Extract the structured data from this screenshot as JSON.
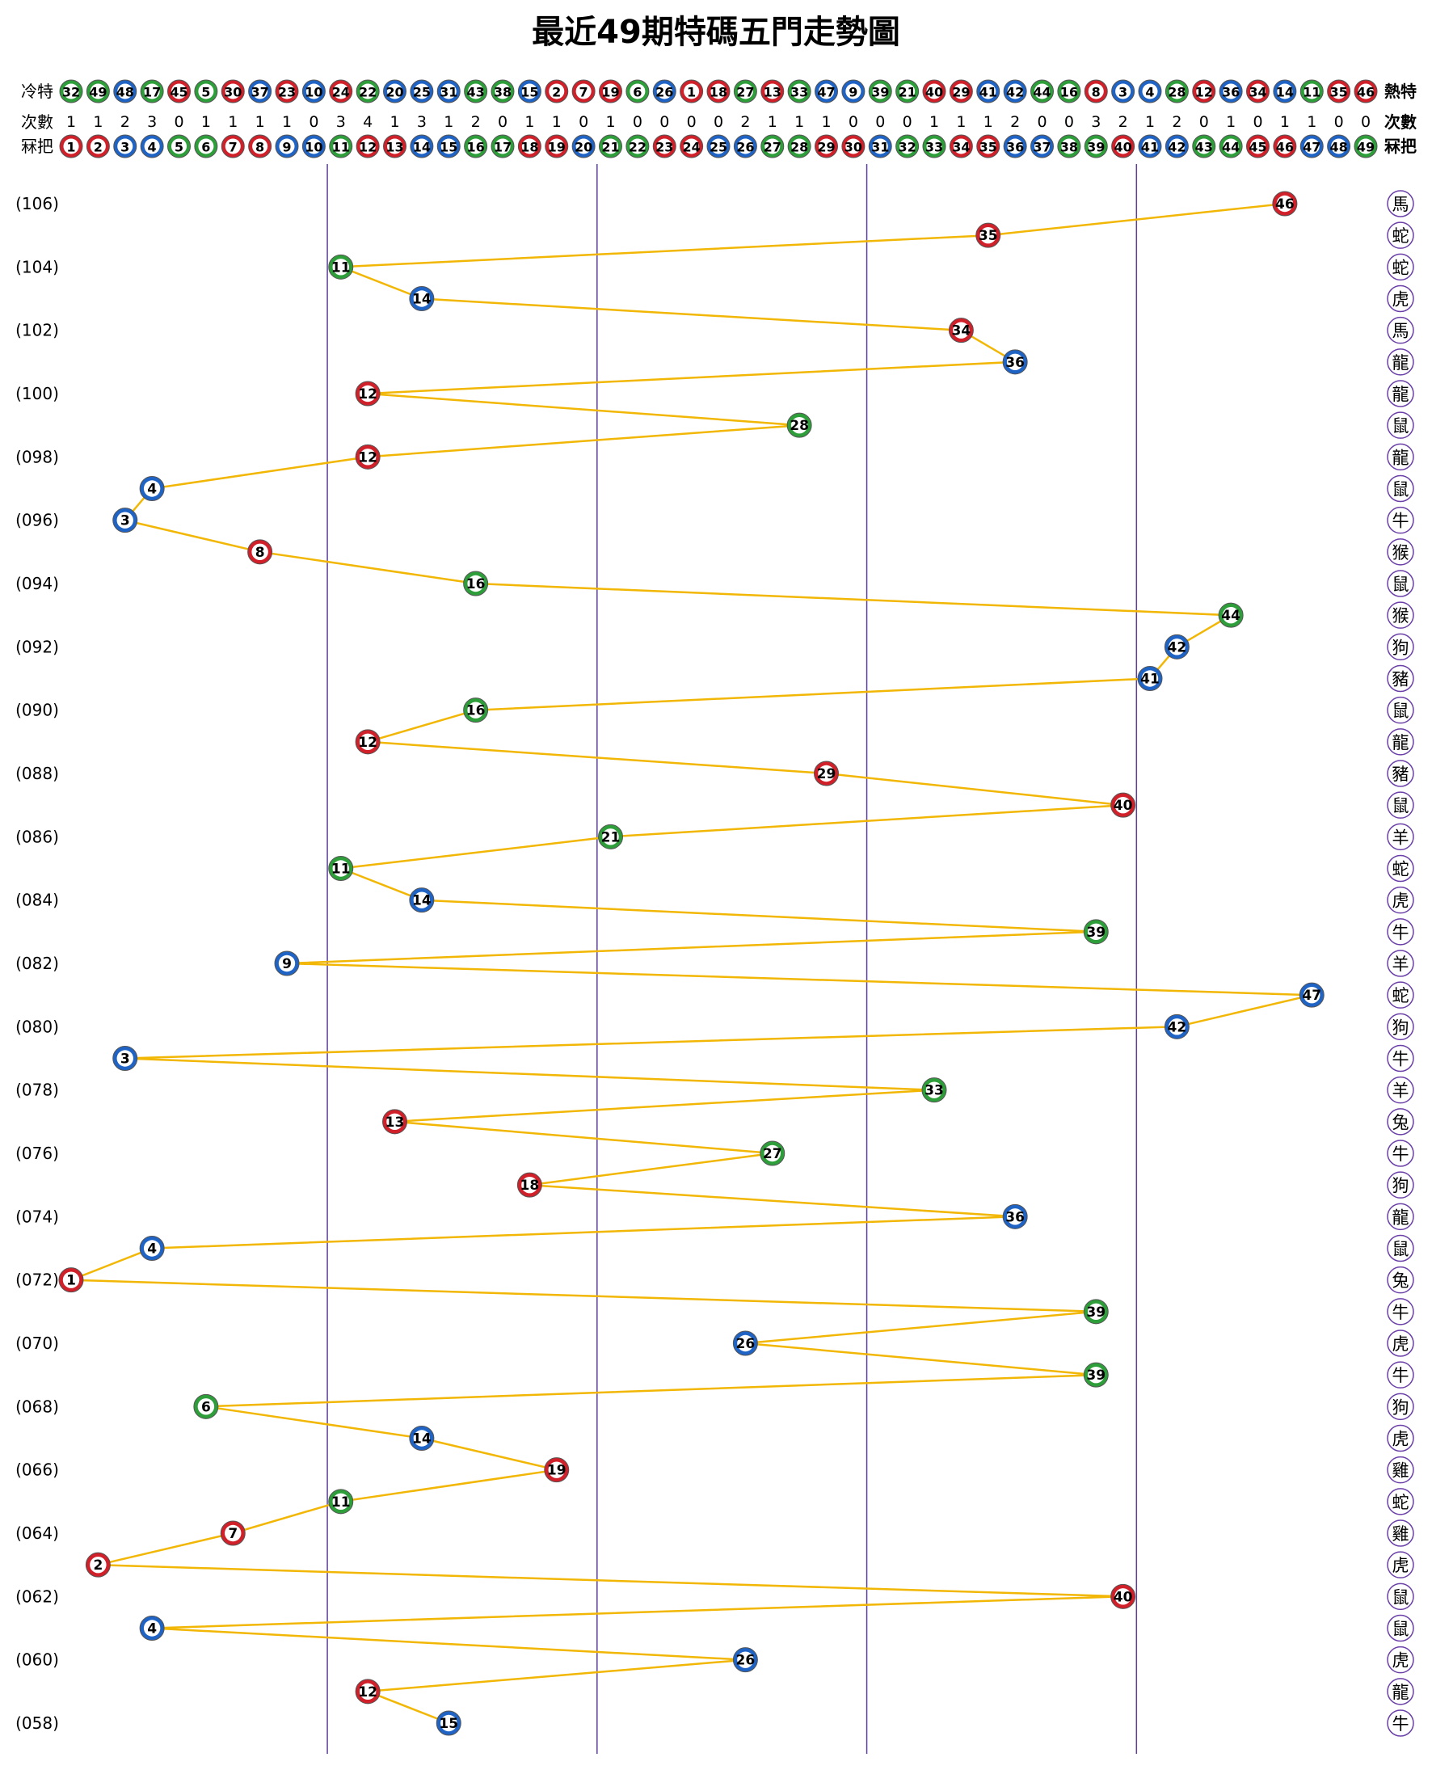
{
  "chart_data": {
    "type": "line",
    "title": "最近49期特碼五門走勢圖",
    "cold_label": "冷特",
    "hot_label": "熱特",
    "cold_order": [
      32,
      49,
      48,
      17,
      45,
      5,
      30,
      37,
      23,
      10,
      24,
      22,
      20,
      25,
      31,
      43,
      38,
      15,
      2,
      7,
      19,
      6,
      26,
      1,
      18,
      27,
      13,
      33,
      47,
      9,
      39,
      21,
      40,
      29,
      41,
      42,
      44,
      16,
      8,
      3,
      4,
      28,
      12,
      36,
      34,
      14,
      11,
      35,
      46
    ],
    "count_label": "次數",
    "counts": [
      1,
      1,
      2,
      3,
      0,
      1,
      1,
      1,
      1,
      0,
      3,
      4,
      1,
      3,
      1,
      2,
      0,
      1,
      1,
      0,
      1,
      0,
      0,
      0,
      0,
      2,
      1,
      1,
      1,
      0,
      0,
      0,
      1,
      1,
      1,
      2,
      0,
      0,
      3,
      2,
      1,
      2,
      0,
      1,
      0,
      1,
      1,
      0,
      0
    ],
    "number_label": "冧把",
    "numbers": [
      1,
      2,
      3,
      4,
      5,
      6,
      7,
      8,
      9,
      10,
      11,
      12,
      13,
      14,
      15,
      16,
      17,
      18,
      19,
      20,
      21,
      22,
      23,
      24,
      25,
      26,
      27,
      28,
      29,
      30,
      31,
      32,
      33,
      34,
      35,
      36,
      37,
      38,
      39,
      40,
      41,
      42,
      43,
      44,
      45,
      46,
      47,
      48,
      49
    ],
    "categories": [
      "(106)",
      null,
      "(104)",
      null,
      "(102)",
      null,
      "(100)",
      null,
      "(098)",
      null,
      "(096)",
      null,
      "(094)",
      null,
      "(092)",
      null,
      "(090)",
      null,
      "(088)",
      null,
      "(086)",
      null,
      "(084)",
      null,
      "(082)",
      null,
      "(080)",
      null,
      "(078)",
      null,
      "(076)",
      null,
      "(074)",
      null,
      "(072)",
      null,
      "(070)",
      null,
      "(068)",
      null,
      "(066)",
      null,
      "(064)",
      null,
      "(062)",
      null,
      "(060)",
      null,
      "(058)"
    ],
    "values": [
      46,
      35,
      11,
      14,
      34,
      36,
      12,
      28,
      12,
      4,
      3,
      8,
      16,
      44,
      42,
      41,
      16,
      12,
      29,
      40,
      21,
      11,
      14,
      39,
      9,
      47,
      42,
      3,
      33,
      13,
      27,
      18,
      36,
      4,
      1,
      39,
      26,
      39,
      6,
      14,
      19,
      11,
      7,
      2,
      40,
      4,
      26,
      12,
      15
    ],
    "zodiac": [
      "馬",
      "蛇",
      "蛇",
      "虎",
      "馬",
      "龍",
      "龍",
      "鼠",
      "龍",
      "鼠",
      "牛",
      "猴",
      "鼠",
      "猴",
      "狗",
      "豬",
      "鼠",
      "龍",
      "豬",
      "鼠",
      "羊",
      "蛇",
      "虎",
      "牛",
      "羊",
      "蛇",
      "狗",
      "牛",
      "羊",
      "兔",
      "牛",
      "狗",
      "龍",
      "鼠",
      "兔",
      "牛",
      "虎",
      "牛",
      "狗",
      "虎",
      "雞",
      "蛇",
      "雞",
      "虎",
      "鼠",
      "鼠",
      "虎",
      "龍",
      "牛"
    ],
    "xlim": [
      1,
      49
    ],
    "line_color": "#f2b705",
    "divider_color": "#5b3f98",
    "zodiac_color": "#6a3fa8",
    "palette": {
      "red": "#d0202a",
      "blue": "#1f63c4",
      "green": "#2e9e3a"
    },
    "number_colors": [
      "red",
      "red",
      "blue",
      "blue",
      "green",
      "green",
      "red",
      "red",
      "blue",
      "blue",
      "green",
      "red",
      "red",
      "blue",
      "blue",
      "green",
      "green",
      "red",
      "red",
      "blue",
      "green",
      "green",
      "red",
      "red",
      "blue",
      "blue",
      "green",
      "green",
      "red",
      "red",
      "blue",
      "green",
      "green",
      "red",
      "red",
      "blue",
      "blue",
      "green",
      "green",
      "red",
      "blue",
      "blue",
      "green",
      "green",
      "red",
      "red",
      "blue",
      "blue",
      "green"
    ]
  }
}
